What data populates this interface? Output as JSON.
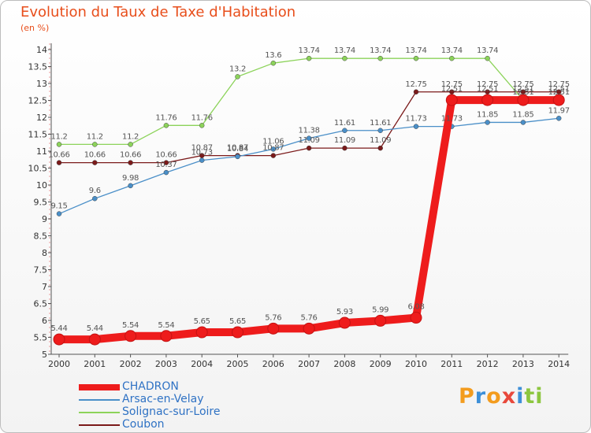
{
  "title": "Evolution du Taux de Taxe d'Habitation",
  "subtitle": "(en %)",
  "brand": {
    "letters": [
      "P",
      "r",
      "o",
      "x",
      "i",
      "t",
      "i"
    ],
    "colors": [
      "#f39c1e",
      "#3d8fd8",
      "#f39c1e",
      "#e8483b",
      "#3d8fd8",
      "#8cc63f",
      "#8cc63f"
    ]
  },
  "chart_data": {
    "type": "line",
    "x": [
      2000,
      2001,
      2002,
      2003,
      2004,
      2005,
      2006,
      2007,
      2008,
      2009,
      2010,
      2011,
      2012,
      2013,
      2014
    ],
    "ylim": [
      5,
      14
    ],
    "yticks": [
      5,
      5.5,
      6,
      6.5,
      7,
      7.5,
      8,
      8.5,
      9,
      9.5,
      10,
      10.5,
      11,
      11.5,
      12,
      12.5,
      13,
      13.5,
      14
    ],
    "ytick_labels": [
      "5",
      "5.5",
      "6",
      "6.5",
      "7",
      "7.5",
      "8",
      "8.5",
      "9",
      "9.5",
      "10",
      "10.5",
      "11",
      "11.5",
      "12",
      "12.5",
      "13",
      "13.5",
      "14"
    ],
    "grid": false,
    "legend": "bottom-left",
    "series": [
      {
        "name": "Coubon",
        "color": "#7b1a1a",
        "values": [
          10.66,
          10.66,
          10.66,
          10.66,
          10.87,
          10.87,
          10.87,
          11.09,
          11.09,
          11.09,
          12.75,
          12.75,
          12.75,
          12.75,
          12.75
        ],
        "labels": [
          "10.66",
          "10.66",
          "10.66",
          "10.66",
          "10.87",
          "10.87",
          "10.87",
          "11.09",
          "11.09",
          "11.09",
          "12.75",
          "12.75",
          "12.75",
          "12.75",
          "12.75"
        ]
      },
      {
        "name": "Arsac-en-Velay",
        "color": "#4a8fc8",
        "values": [
          9.15,
          9.6,
          9.98,
          10.37,
          10.73,
          10.84,
          11.06,
          11.38,
          11.61,
          11.61,
          11.73,
          11.73,
          11.85,
          11.85,
          11.97
        ],
        "labels": [
          "9.15",
          "9.6",
          "9.98",
          "10.37",
          "10.73",
          "10.84",
          "11.06",
          "11.38",
          "11.61",
          "11.61",
          "11.73",
          "11.73",
          "11.85",
          "11.85",
          "11.97"
        ]
      },
      {
        "name": "Solignac-sur-Loire",
        "color": "#8cd35a",
        "values": [
          11.2,
          11.2,
          11.2,
          11.76,
          11.76,
          13.2,
          13.6,
          13.74,
          13.74,
          13.74,
          13.74,
          13.74,
          13.74,
          12.51,
          12.51
        ],
        "labels": [
          "11.2",
          "11.2",
          "11.2",
          "11.76",
          "11.76",
          "13.2",
          "13.6",
          "13.74",
          "13.74",
          "13.74",
          "13.74",
          "13.74",
          "13.74",
          "12.51",
          "12.51"
        ]
      },
      {
        "name": "CHADRON",
        "color": "#ee1c1c",
        "values": [
          5.44,
          5.44,
          5.54,
          5.54,
          5.65,
          5.65,
          5.76,
          5.76,
          5.93,
          5.99,
          6.08,
          12.51,
          12.51,
          12.51,
          12.51
        ],
        "labels": [
          "5.44",
          "5.44",
          "5.54",
          "5.54",
          "5.65",
          "5.65",
          "5.76",
          "5.76",
          "5.93",
          "5.99",
          "6.08",
          "12.51",
          "12.51",
          "12.51",
          "12.51"
        ]
      }
    ],
    "legend_order": [
      "CHADRON",
      "Arsac-en-Velay",
      "Solignac-sur-Loire",
      "Coubon"
    ]
  }
}
